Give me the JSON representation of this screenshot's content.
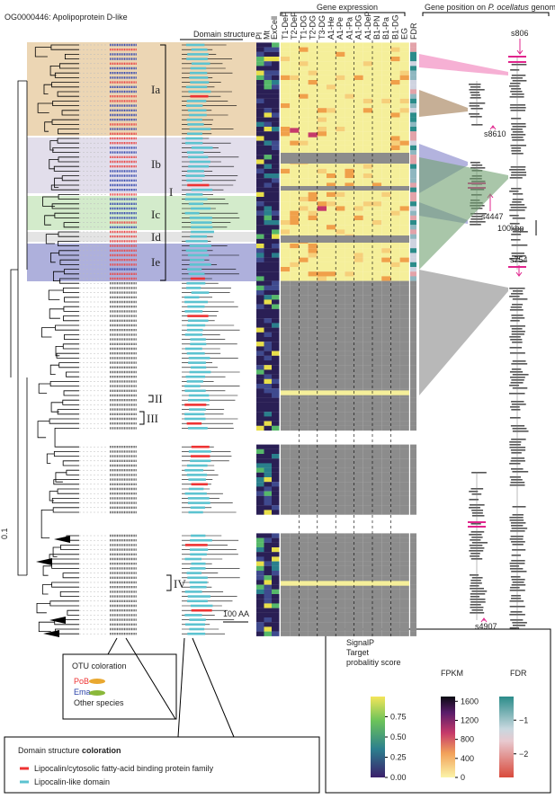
{
  "title": "OG0000446: Apolipoprotein D-like",
  "domain_header": "Domain structure",
  "signal_columns": [
    "Pl",
    "Mt",
    "ExCell"
  ],
  "expression_header": "Gene expression",
  "expression_columns": [
    "T1-DeP",
    "T2-DeP",
    "T1-DG",
    "T2-DG",
    "T3-DG",
    "A1-He",
    "A1-Pe",
    "A1-Pa",
    "A1-DG",
    "A1-DeP",
    "B1-PN",
    "B1-Pa",
    "B1-DG",
    "EG"
  ],
  "fdr_column": "FDR",
  "genome_header": {
    "prefix": "Gene position on ",
    "italic": "P. ocellatus",
    "suffix": " genome"
  },
  "scaffolds": [
    "s806",
    "s8610",
    "s4447",
    "s754",
    "s4907"
  ],
  "genome_scale": "100kbp",
  "domain_scale": "100 AA",
  "tree_scale": "0.1",
  "clades": [
    "Ia",
    "Ib",
    "I",
    "Ic",
    "Id",
    "Ie",
    "II",
    "III",
    "IV"
  ],
  "otu_legend": {
    "title": "OTU coloration",
    "items": [
      "PoB",
      "Ema",
      "Other species"
    ]
  },
  "domain_legend": {
    "title_plain": "Domain structure ",
    "title_bold": "coloration",
    "items": [
      "Lipocalin/cytosolic fatty-acid binding protein family",
      "Lipocalin-like domain"
    ]
  },
  "color_legends": [
    {
      "title": [
        "SignalP",
        "Target",
        "probalitiy score"
      ],
      "lim": [
        0,
        1
      ],
      "ticks": [
        {
          "value": 0,
          "label": "0.00"
        },
        {
          "value": 0.25,
          "label": "0.25"
        },
        {
          "value": 0.5,
          "label": "0.50"
        },
        {
          "value": 0.75,
          "label": "0.75"
        }
      ]
    },
    {
      "title": [
        "FPKM"
      ],
      "lim": [
        0,
        1700
      ],
      "ticks": [
        0,
        400,
        800,
        1200,
        1600
      ]
    },
    {
      "title": [
        "FDR"
      ],
      "lim": [
        -2.7,
        -0.3
      ],
      "ticks": [
        {
          "value": -1,
          "label": "−1"
        },
        {
          "value": -2,
          "label": "−2"
        }
      ]
    }
  ]
}
